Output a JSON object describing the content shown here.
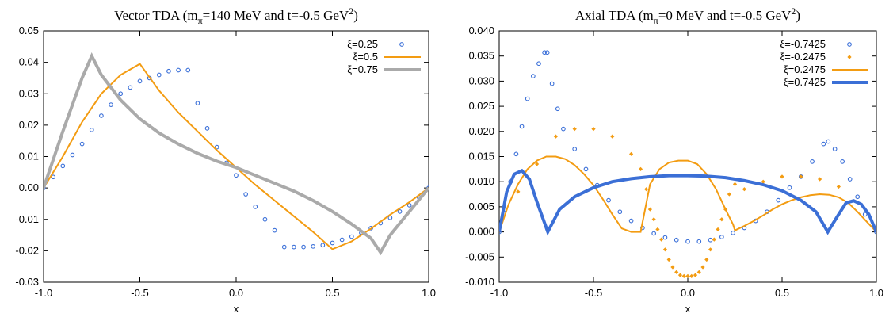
{
  "chart_data": [
    {
      "type": "line",
      "title_prefix": "Vector TDA (m",
      "title_sub": "π",
      "title_mid": "=140 MeV and t=-0.5 GeV",
      "title_sup": "2",
      "title_suffix": ")",
      "xlabel": "x",
      "ylabel": "",
      "xlim": [
        -1.0,
        1.0
      ],
      "ylim": [
        -0.03,
        0.05
      ],
      "xticks": [
        -1.0,
        -0.5,
        0.0,
        0.5,
        1.0
      ],
      "xtick_labels": [
        "-1.0",
        "-0.5",
        "0.0",
        "0.5",
        "1.0"
      ],
      "yticks": [
        -0.03,
        -0.02,
        -0.01,
        0.0,
        0.01,
        0.02,
        0.03,
        0.04,
        0.05
      ],
      "ytick_labels": [
        "-0.03",
        "-0.02",
        "-0.01",
        "0.00",
        "0.01",
        "0.02",
        "0.03",
        "0.04",
        "0.05"
      ],
      "grid": false,
      "legend_position": "top-right",
      "series": [
        {
          "name": "ξ=0.25",
          "style": "points",
          "color": "#3a6fd8",
          "x": [
            -1.0,
            -0.95,
            -0.9,
            -0.85,
            -0.8,
            -0.75,
            -0.7,
            -0.65,
            -0.6,
            -0.55,
            -0.5,
            -0.45,
            -0.4,
            -0.35,
            -0.3,
            -0.25,
            -0.2,
            -0.15,
            -0.1,
            -0.05,
            0.0,
            0.05,
            0.1,
            0.15,
            0.2,
            0.25,
            0.3,
            0.35,
            0.4,
            0.45,
            0.5,
            0.55,
            0.6,
            0.65,
            0.7,
            0.75,
            0.8,
            0.85,
            0.9,
            0.95,
            1.0
          ],
          "y": [
            0.0,
            0.0035,
            0.007,
            0.0105,
            0.014,
            0.0185,
            0.023,
            0.0265,
            0.03,
            0.032,
            0.034,
            0.035,
            0.036,
            0.0372,
            0.0375,
            0.0375,
            0.027,
            0.019,
            0.013,
            0.008,
            0.004,
            -0.002,
            -0.006,
            -0.01,
            -0.0135,
            -0.0188,
            -0.0188,
            -0.0188,
            -0.0186,
            -0.0182,
            -0.0175,
            -0.0165,
            -0.0155,
            -0.0143,
            -0.0128,
            -0.0112,
            -0.0095,
            -0.0075,
            -0.0055,
            -0.003,
            0.0
          ]
        },
        {
          "name": "ξ=0.5",
          "style": "line",
          "color": "#f39c12",
          "x": [
            -1.0,
            -0.9,
            -0.8,
            -0.7,
            -0.6,
            -0.5,
            -0.4,
            -0.3,
            -0.2,
            -0.1,
            0.0,
            0.1,
            0.2,
            0.3,
            0.4,
            0.5,
            0.6,
            0.7,
            0.8,
            0.9,
            1.0
          ],
          "y": [
            0.0,
            0.01,
            0.021,
            0.03,
            0.036,
            0.0395,
            0.031,
            0.024,
            0.018,
            0.012,
            0.0065,
            0.001,
            -0.004,
            -0.009,
            -0.014,
            -0.0195,
            -0.017,
            -0.013,
            -0.0085,
            -0.0045,
            0.0
          ]
        },
        {
          "name": "ξ=0.75",
          "style": "thick-line",
          "color": "#aaaaaa",
          "x": [
            -1.0,
            -0.9,
            -0.8,
            -0.75,
            -0.7,
            -0.6,
            -0.5,
            -0.4,
            -0.3,
            -0.2,
            -0.1,
            0.0,
            0.1,
            0.2,
            0.3,
            0.4,
            0.5,
            0.6,
            0.7,
            0.75,
            0.8,
            0.9,
            1.0
          ],
          "y": [
            0.0,
            0.018,
            0.035,
            0.042,
            0.036,
            0.028,
            0.022,
            0.0175,
            0.014,
            0.011,
            0.0085,
            0.0065,
            0.004,
            0.0015,
            -0.001,
            -0.004,
            -0.0075,
            -0.0115,
            -0.016,
            -0.0205,
            -0.015,
            -0.0075,
            0.0
          ]
        }
      ]
    },
    {
      "type": "line",
      "title_prefix": "Axial TDA (m",
      "title_sub": "π",
      "title_mid": "=0 MeV and t=-0.5 GeV",
      "title_sup": "2",
      "title_suffix": ")",
      "xlabel": "x",
      "ylabel": "",
      "xlim": [
        -1.0,
        1.0
      ],
      "ylim": [
        -0.01,
        0.04
      ],
      "xticks": [
        -1.0,
        -0.5,
        0.0,
        0.5,
        1.0
      ],
      "xtick_labels": [
        "-1.0",
        "-0.5",
        "0.0",
        "0.5",
        "1.0"
      ],
      "yticks": [
        -0.01,
        -0.005,
        0.0,
        0.005,
        0.01,
        0.015,
        0.02,
        0.025,
        0.03,
        0.035,
        0.04
      ],
      "ytick_labels": [
        "-0.010",
        "-0.005",
        "0.000",
        "0.005",
        "0.010",
        "0.015",
        "0.020",
        "0.025",
        "0.030",
        "0.035",
        "0.040"
      ],
      "grid": false,
      "legend_position": "top-right",
      "series": [
        {
          "name": "ξ=-0.7425",
          "style": "points",
          "color": "#3a6fd8",
          "x": [
            -1.0,
            -0.97,
            -0.94,
            -0.91,
            -0.88,
            -0.85,
            -0.82,
            -0.79,
            -0.76,
            -0.745,
            -0.72,
            -0.69,
            -0.66,
            -0.6,
            -0.54,
            -0.48,
            -0.42,
            -0.36,
            -0.3,
            -0.24,
            -0.18,
            -0.12,
            -0.06,
            0.0,
            0.06,
            0.12,
            0.18,
            0.24,
            0.3,
            0.36,
            0.42,
            0.48,
            0.54,
            0.6,
            0.66,
            0.72,
            0.745,
            0.78,
            0.82,
            0.86,
            0.9,
            0.94,
            1.0
          ],
          "y": [
            0.0,
            0.0045,
            0.01,
            0.0155,
            0.021,
            0.0265,
            0.031,
            0.0335,
            0.0357,
            0.0357,
            0.0295,
            0.0245,
            0.0205,
            0.0165,
            0.0125,
            0.0093,
            0.0063,
            0.004,
            0.0022,
            0.0008,
            -0.0003,
            -0.0011,
            -0.0016,
            -0.0019,
            -0.0019,
            -0.0016,
            -0.001,
            -0.0002,
            0.0008,
            0.0022,
            0.004,
            0.0063,
            0.0088,
            0.011,
            0.014,
            0.0175,
            0.018,
            0.0165,
            0.014,
            0.0105,
            0.007,
            0.0035,
            0.0
          ]
        },
        {
          "name": "ξ=-0.2475",
          "style": "points",
          "color": "#f39c12",
          "x": [
            -0.9,
            -0.8,
            -0.7,
            -0.6,
            -0.5,
            -0.4,
            -0.3,
            -0.25,
            -0.22,
            -0.2,
            -0.18,
            -0.16,
            -0.14,
            -0.12,
            -0.1,
            -0.08,
            -0.06,
            -0.04,
            -0.02,
            0.0,
            0.02,
            0.04,
            0.06,
            0.08,
            0.1,
            0.12,
            0.14,
            0.16,
            0.18,
            0.2,
            0.22,
            0.25,
            0.3,
            0.4,
            0.5,
            0.6,
            0.7,
            0.8
          ],
          "y": [
            0.008,
            0.0135,
            0.019,
            0.0205,
            0.0205,
            0.019,
            0.0155,
            0.0125,
            0.0085,
            0.0045,
            0.0025,
            0.0005,
            -0.0015,
            -0.0035,
            -0.0055,
            -0.007,
            -0.008,
            -0.0086,
            -0.0088,
            -0.0088,
            -0.0088,
            -0.0086,
            -0.008,
            -0.007,
            -0.0055,
            -0.0035,
            -0.0015,
            0.0005,
            0.0025,
            0.0045,
            0.0075,
            0.0095,
            0.0085,
            0.01,
            0.011,
            0.011,
            0.0105,
            0.009
          ]
        },
        {
          "name": "ξ=0.2475",
          "style": "line",
          "color": "#f39c12",
          "x": [
            -1.0,
            -0.95,
            -0.9,
            -0.85,
            -0.8,
            -0.75,
            -0.7,
            -0.65,
            -0.6,
            -0.55,
            -0.5,
            -0.45,
            -0.4,
            -0.35,
            -0.3,
            -0.25,
            -0.2,
            -0.15,
            -0.1,
            -0.05,
            0.0,
            0.05,
            0.1,
            0.15,
            0.2,
            0.24,
            0.25,
            0.3,
            0.35,
            0.4,
            0.45,
            0.5,
            0.55,
            0.6,
            0.65,
            0.7,
            0.75,
            0.8,
            0.85,
            0.9,
            0.95,
            1.0
          ],
          "y": [
            0.0,
            0.0055,
            0.0095,
            0.0125,
            0.0142,
            0.015,
            0.015,
            0.0145,
            0.0133,
            0.0115,
            0.0093,
            0.0065,
            0.0035,
            0.0007,
            0.0,
            0.0,
            0.0095,
            0.0125,
            0.0138,
            0.0142,
            0.0142,
            0.0135,
            0.0115,
            0.0085,
            0.0045,
            0.0015,
            0.0003,
            0.0012,
            0.0022,
            0.0033,
            0.0045,
            0.0055,
            0.0063,
            0.0069,
            0.0073,
            0.0075,
            0.0074,
            0.0069,
            0.0058,
            0.004,
            0.002,
            0.0
          ]
        },
        {
          "name": "ξ=0.7425",
          "style": "thick-line",
          "color": "#3b6fd6",
          "x": [
            -1.0,
            -0.96,
            -0.92,
            -0.88,
            -0.84,
            -0.8,
            -0.7425,
            -0.68,
            -0.6,
            -0.5,
            -0.4,
            -0.3,
            -0.2,
            -0.1,
            0.0,
            0.1,
            0.2,
            0.3,
            0.4,
            0.5,
            0.6,
            0.68,
            0.7425,
            0.8,
            0.84,
            0.88,
            0.92,
            0.96,
            1.0
          ],
          "y": [
            0.0,
            0.008,
            0.0115,
            0.0122,
            0.0105,
            0.006,
            0.0,
            0.0045,
            0.007,
            0.0088,
            0.01,
            0.0106,
            0.011,
            0.0112,
            0.0112,
            0.0111,
            0.0108,
            0.0102,
            0.0094,
            0.0082,
            0.0063,
            0.004,
            0.0,
            0.0035,
            0.0058,
            0.0062,
            0.0055,
            0.0035,
            0.0
          ]
        }
      ]
    }
  ]
}
